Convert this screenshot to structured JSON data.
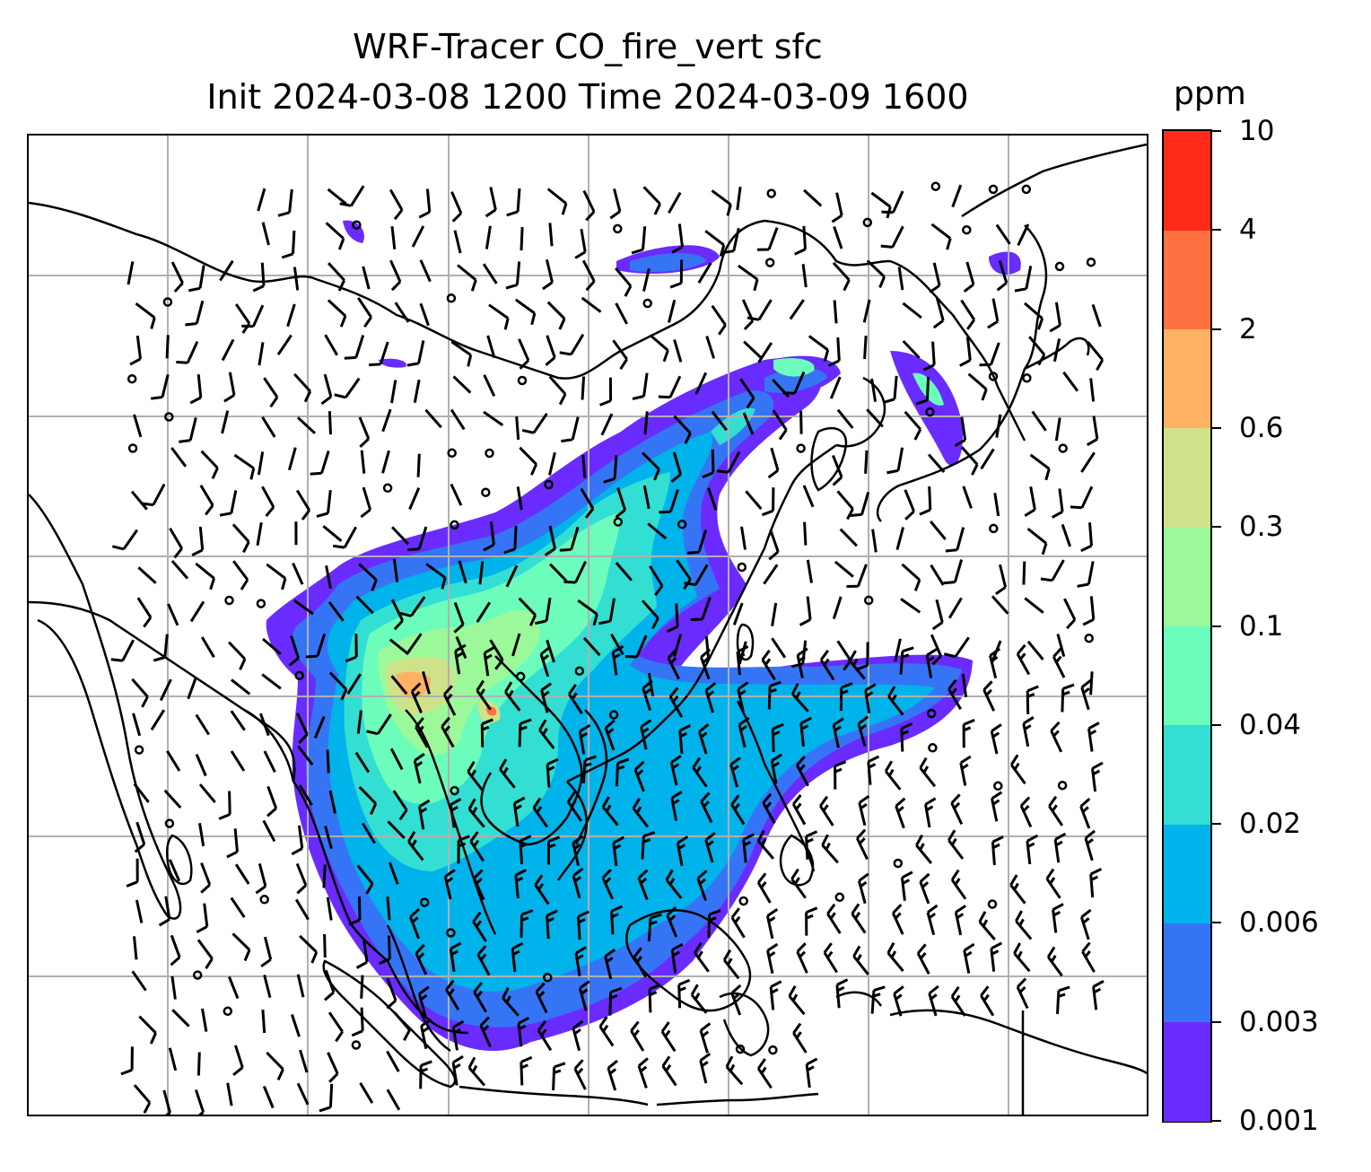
{
  "title": {
    "line1": "WRF-Tracer CO_fire_vert sfc",
    "line2": "Init 2024-03-08 1200 Time 2024-03-09 1600"
  },
  "colorbar": {
    "unit": "ppm",
    "ticks": [
      "0.001",
      "0.003",
      "0.006",
      "0.02",
      "0.04",
      "0.1",
      "0.3",
      "0.6",
      "2",
      "4",
      "10"
    ],
    "colors": [
      "#6a2bff",
      "#3575f5",
      "#00b3ea",
      "#33dfd3",
      "#6cfdbd",
      "#9cf99a",
      "#cfe28a",
      "#ffb264",
      "#ff7140",
      "#ff2a18"
    ]
  },
  "map": {
    "gridlines": true,
    "field": "CO_fire_vert",
    "level": "sfc",
    "overlay": "wind-barbs"
  }
}
